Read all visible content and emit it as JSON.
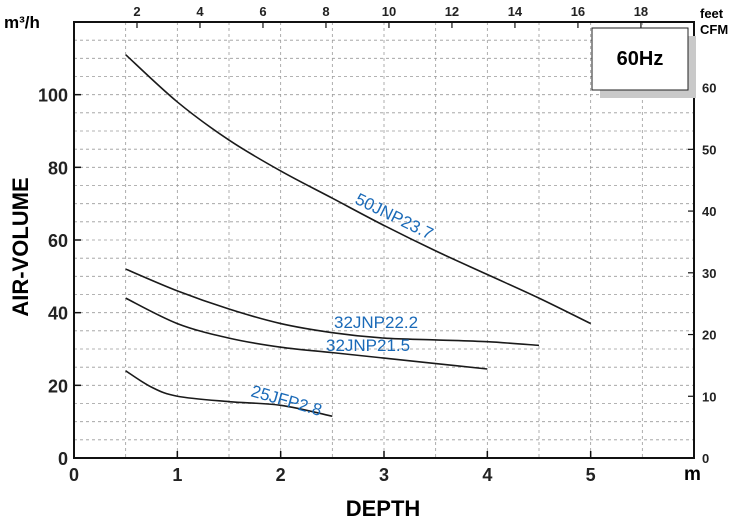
{
  "chart_data": {
    "type": "line",
    "frequency_badge": "60Hz",
    "xlabel": "DEPTH",
    "xunit": "m",
    "ylabel": "AIR-VOLUME",
    "yunit_left": "m³/h",
    "yunit_right": "CFM",
    "top_axis_unit": "feet",
    "xlim": [
      0,
      6
    ],
    "ylim": [
      0,
      120
    ],
    "x_ticks": [
      "0",
      "1",
      "2",
      "3",
      "4",
      "5"
    ],
    "y_ticks": [
      "0",
      "20",
      "40",
      "60",
      "80",
      "100"
    ],
    "top_ticks": [
      "2",
      "4",
      "6",
      "8",
      "10",
      "12",
      "14",
      "16",
      "18"
    ],
    "right_ticks": [
      "0",
      "10",
      "20",
      "30",
      "40",
      "50",
      "60"
    ],
    "series": [
      {
        "name": "50JNP23.7",
        "x": [
          0.5,
          1.0,
          1.5,
          2.0,
          2.5,
          3.0,
          3.5,
          4.0,
          4.5,
          5.0
        ],
        "y": [
          111,
          98,
          87.5,
          79,
          71.5,
          64,
          57,
          50.5,
          44,
          37
        ]
      },
      {
        "name": "32JNP22.2",
        "x": [
          0.5,
          1.0,
          1.5,
          2.0,
          2.5,
          3.0,
          3.5,
          4.0,
          4.5
        ],
        "y": [
          52,
          46,
          41,
          37,
          34.5,
          33,
          32.5,
          32,
          31
        ]
      },
      {
        "name": "32JNP21.5",
        "x": [
          0.5,
          1.0,
          1.5,
          2.0,
          2.5,
          3.0,
          3.5,
          4.0
        ],
        "y": [
          44,
          37,
          33,
          30.5,
          29,
          27.5,
          26,
          24.5
        ]
      },
      {
        "name": "25JFP2.8",
        "x": [
          0.5,
          0.75,
          1.0,
          1.5,
          2.0,
          2.5
        ],
        "y": [
          24,
          19.5,
          17,
          15.5,
          14.5,
          11.5
        ]
      }
    ]
  }
}
